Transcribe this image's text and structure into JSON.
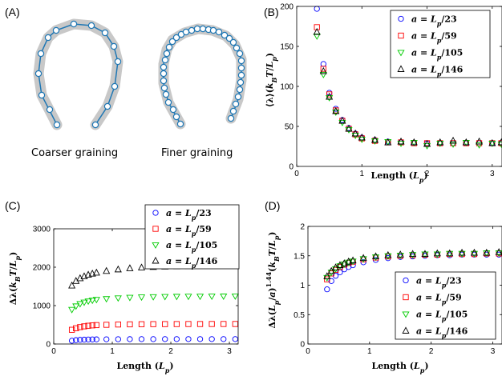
{
  "panel_labels": {
    "a": "(A)",
    "b": "(B)",
    "c": "(C)",
    "d": "(D)"
  },
  "schematics": {
    "coarse_caption": "Coarser graining",
    "fine_caption": "Finer graining",
    "band_color": "#c8c8c8",
    "node_color": "#1f77b4"
  },
  "colors": {
    "blue": "#0000ff",
    "red": "#ff0000",
    "green": "#00cc00",
    "black": "#000000"
  },
  "chart_data": [
    {
      "id": "B",
      "type": "scatter",
      "xlabel": "Length (L_p)",
      "ylabel": "⟨λ⟩(k_B T/L_p)",
      "xlim": [
        0,
        3.15
      ],
      "ylim": [
        0,
        200
      ],
      "xticks": [
        0,
        1,
        2,
        3
      ],
      "yticks": [
        0,
        50,
        100,
        150,
        200
      ],
      "legend": "top-right",
      "grid": false,
      "x": [
        0.31,
        0.41,
        0.5,
        0.6,
        0.7,
        0.8,
        0.9,
        1.0,
        1.2,
        1.4,
        1.6,
        1.8,
        2.0,
        2.2,
        2.4,
        2.6,
        2.8,
        3.0,
        3.14
      ],
      "series": [
        {
          "name": "a = L_p/23",
          "marker": "circle",
          "color": "blue",
          "values": [
            197,
            128,
            92,
            72,
            58,
            48,
            41,
            36,
            33,
            31,
            30,
            29.5,
            29,
            29,
            29,
            29,
            29,
            29,
            29
          ]
        },
        {
          "name": "a = L_p/59",
          "marker": "square",
          "color": "red",
          "values": [
            174,
            122,
            90,
            70,
            57,
            47,
            40,
            35,
            32,
            30,
            30,
            29,
            29,
            29,
            29,
            29,
            29,
            29,
            29
          ]
        },
        {
          "name": "a = L_p/105",
          "marker": "triangle-down",
          "color": "green",
          "values": [
            163,
            115,
            86,
            68,
            55,
            46,
            39,
            34,
            32,
            31,
            29,
            30,
            26,
            29,
            28,
            30,
            27,
            29,
            28
          ]
        },
        {
          "name": "a = L_p/146",
          "marker": "triangle-up",
          "color": "black",
          "values": [
            168,
            119,
            87,
            69,
            57,
            47,
            41,
            36,
            33,
            30,
            31,
            30,
            28,
            30,
            32,
            30,
            31,
            29,
            30
          ]
        }
      ]
    },
    {
      "id": "C",
      "type": "scatter",
      "xlabel": "Length (L_p)",
      "ylabel": "Δλ(k_B T/L_p)",
      "xlim": [
        0,
        3.15
      ],
      "ylim": [
        0,
        3000
      ],
      "xticks": [
        0,
        1,
        2,
        3
      ],
      "yticks": [
        0,
        1000,
        2000,
        3000
      ],
      "legend": "top-right",
      "grid": false,
      "x": [
        0.31,
        0.38,
        0.45,
        0.52,
        0.59,
        0.66,
        0.73,
        0.9,
        1.1,
        1.3,
        1.5,
        1.7,
        1.9,
        2.1,
        2.3,
        2.5,
        2.7,
        2.9,
        3.1
      ],
      "series": [
        {
          "name": "a = L_p/23",
          "marker": "circle",
          "color": "blue",
          "values": [
            85,
            100,
            108,
            113,
            117,
            119,
            121,
            123,
            125,
            126,
            127,
            127,
            128,
            128,
            128,
            128,
            128,
            128,
            128
          ]
        },
        {
          "name": "a = L_p/59",
          "marker": "square",
          "color": "red",
          "values": [
            370,
            410,
            440,
            460,
            475,
            485,
            492,
            500,
            508,
            512,
            515,
            517,
            518,
            519,
            520,
            520,
            521,
            521,
            521
          ]
        },
        {
          "name": "a = L_p/105",
          "marker": "triangle-down",
          "color": "green",
          "values": [
            900,
            990,
            1050,
            1090,
            1120,
            1140,
            1160,
            1180,
            1200,
            1215,
            1225,
            1232,
            1237,
            1240,
            1243,
            1245,
            1247,
            1248,
            1250
          ]
        },
        {
          "name": "a = L_p/146",
          "marker": "triangle-up",
          "color": "black",
          "values": [
            1520,
            1640,
            1710,
            1760,
            1800,
            1830,
            1855,
            1900,
            1940,
            1970,
            1990,
            2005,
            2015,
            2022,
            2028,
            2033,
            2037,
            2040,
            2045
          ]
        }
      ]
    },
    {
      "id": "D",
      "type": "scatter",
      "xlabel": "Length (L_p)",
      "ylabel": "Δλ(L_p/a)^1.44(k_B T/L_p)",
      "xlim": [
        0,
        3.15
      ],
      "ylim": [
        0,
        2
      ],
      "xticks": [
        0,
        1,
        2,
        3
      ],
      "yticks": [
        0,
        0.5,
        1,
        1.5,
        2
      ],
      "legend": "bottom-right",
      "grid": false,
      "x": [
        0.31,
        0.38,
        0.45,
        0.52,
        0.59,
        0.66,
        0.73,
        0.9,
        1.1,
        1.3,
        1.5,
        1.7,
        1.9,
        2.1,
        2.3,
        2.5,
        2.7,
        2.9,
        3.1
      ],
      "series": [
        {
          "name": "a = L_p/23",
          "marker": "circle",
          "color": "blue",
          "values": [
            0.93,
            1.07,
            1.16,
            1.22,
            1.27,
            1.31,
            1.34,
            1.39,
            1.43,
            1.46,
            1.48,
            1.49,
            1.5,
            1.51,
            1.51,
            1.52,
            1.52,
            1.52,
            1.52
          ]
        },
        {
          "name": "a = L_p/59",
          "marker": "square",
          "color": "red",
          "values": [
            1.1,
            1.2,
            1.26,
            1.31,
            1.35,
            1.38,
            1.4,
            1.44,
            1.47,
            1.49,
            1.5,
            1.51,
            1.52,
            1.52,
            1.53,
            1.53,
            1.53,
            1.54,
            1.54
          ]
        },
        {
          "name": "a = L_p/105",
          "marker": "triangle-down",
          "color": "green",
          "values": [
            1.13,
            1.22,
            1.28,
            1.33,
            1.36,
            1.39,
            1.41,
            1.45,
            1.48,
            1.5,
            1.51,
            1.52,
            1.53,
            1.53,
            1.54,
            1.54,
            1.54,
            1.55,
            1.55
          ]
        },
        {
          "name": "a = L_p/146",
          "marker": "triangle-up",
          "color": "black",
          "values": [
            1.15,
            1.24,
            1.3,
            1.34,
            1.37,
            1.4,
            1.42,
            1.46,
            1.49,
            1.51,
            1.52,
            1.53,
            1.53,
            1.54,
            1.54,
            1.55,
            1.55,
            1.55,
            1.56
          ]
        }
      ]
    }
  ]
}
